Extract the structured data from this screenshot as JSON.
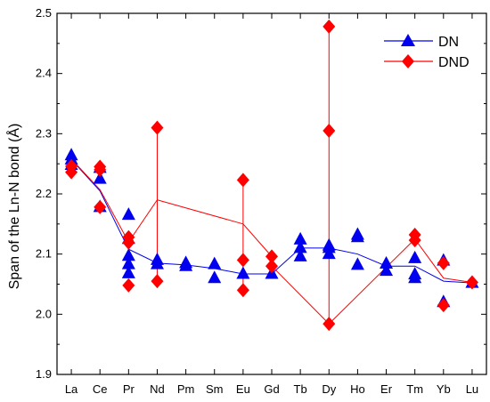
{
  "chart_data": {
    "type": "scatter",
    "title": "",
    "xlabel": "",
    "ylabel": "Span of the Ln-N bond (Å)",
    "categories": [
      "La",
      "Ce",
      "Pr",
      "Nd",
      "Pm",
      "Sm",
      "Eu",
      "Gd",
      "Tb",
      "Dy",
      "Ho",
      "Er",
      "Tm",
      "Yb",
      "Lu"
    ],
    "ylim": [
      1.9,
      2.5
    ],
    "yticks": [
      "1.9",
      "2.0",
      "2.1",
      "2.2",
      "2.3",
      "2.4",
      "2.5"
    ],
    "grid": false,
    "legend_position": "top-right",
    "series": [
      {
        "name": "DN",
        "marker": "triangle",
        "color": "#0000ee",
        "points": [
          [
            "La",
            2.264
          ],
          [
            "La",
            2.257
          ],
          [
            "La",
            2.248
          ],
          [
            "Ce",
            2.243
          ],
          [
            "Ce",
            2.225
          ],
          [
            "Ce",
            2.178
          ],
          [
            "Pr",
            2.165
          ],
          [
            "Pr",
            2.125
          ],
          [
            "Pr",
            2.097
          ],
          [
            "Pr",
            2.083
          ],
          [
            "Pr",
            2.068
          ],
          [
            "Nd",
            2.09
          ],
          [
            "Nd",
            2.083
          ],
          [
            "Pm",
            2.085
          ],
          [
            "Pm",
            2.08
          ],
          [
            "Sm",
            2.083
          ],
          [
            "Sm",
            2.06
          ],
          [
            "Eu",
            2.067
          ],
          [
            "Gd",
            2.067
          ],
          [
            "Tb",
            2.124
          ],
          [
            "Tb",
            2.11
          ],
          [
            "Tb",
            2.096
          ],
          [
            "Dy",
            2.114
          ],
          [
            "Dy",
            2.11
          ],
          [
            "Dy",
            2.1
          ],
          [
            "Ho",
            2.132
          ],
          [
            "Ho",
            2.128
          ],
          [
            "Ho",
            2.082
          ],
          [
            "Er",
            2.084
          ],
          [
            "Er",
            2.072
          ],
          [
            "Tm",
            2.093
          ],
          [
            "Tm",
            2.066
          ],
          [
            "Tm",
            2.06
          ],
          [
            "Yb",
            2.089
          ],
          [
            "Yb",
            2.02
          ],
          [
            "Lu",
            2.052
          ]
        ],
        "line": [
          [
            "La",
            2.257
          ],
          [
            "Ce",
            2.205
          ],
          [
            "Pr",
            2.108
          ],
          [
            "Nd",
            2.085
          ],
          [
            "Pm",
            2.082
          ],
          [
            "Sm",
            2.076
          ],
          [
            "Eu",
            2.067
          ],
          [
            "Gd",
            2.067
          ],
          [
            "Tb",
            2.11
          ],
          [
            "Dy",
            2.11
          ],
          [
            "Ho",
            2.1
          ],
          [
            "Er",
            2.08
          ],
          [
            "Tm",
            2.08
          ],
          [
            "Yb",
            2.055
          ],
          [
            "Lu",
            2.052
          ]
        ]
      },
      {
        "name": "DND",
        "marker": "diamond",
        "color": "#ff0000",
        "points": [
          [
            "La",
            2.246
          ],
          [
            "La",
            2.236
          ],
          [
            "Ce",
            2.245
          ],
          [
            "Ce",
            2.24
          ],
          [
            "Ce",
            2.178
          ],
          [
            "Pr",
            2.128
          ],
          [
            "Pr",
            2.119
          ],
          [
            "Pr",
            2.048
          ],
          [
            "Nd",
            2.31
          ],
          [
            "Nd",
            2.055
          ],
          [
            "Eu",
            2.223
          ],
          [
            "Eu",
            2.09
          ],
          [
            "Eu",
            2.04
          ],
          [
            "Gd",
            2.096
          ],
          [
            "Gd",
            2.08
          ],
          [
            "Dy",
            2.478
          ],
          [
            "Dy",
            2.305
          ],
          [
            "Dy",
            1.984
          ],
          [
            "Tm",
            2.132
          ],
          [
            "Tm",
            2.123
          ],
          [
            "Yb",
            2.085
          ],
          [
            "Yb",
            2.015
          ],
          [
            "Lu",
            2.053
          ]
        ],
        "line": [
          [
            "La",
            2.258
          ],
          [
            "Ce",
            2.207
          ],
          [
            "Pr",
            2.12
          ],
          [
            "Nd",
            2.19
          ],
          [
            "Nd",
            2.055
          ],
          [
            "Nd",
            2.31
          ],
          [
            "Nd",
            2.19
          ],
          [
            "Eu",
            2.15
          ],
          [
            "Eu",
            2.04
          ],
          [
            "Eu",
            2.223
          ],
          [
            "Eu",
            2.15
          ],
          [
            "Gd",
            2.096
          ],
          [
            "Gd",
            2.08
          ],
          [
            "Dy",
            1.984
          ],
          [
            "Dy",
            2.478
          ],
          [
            "Dy",
            2.09
          ],
          [
            "Dy",
            1.984
          ],
          [
            "Tm",
            2.125
          ],
          [
            "Yb",
            2.06
          ],
          [
            "Lu",
            2.053
          ]
        ]
      }
    ]
  }
}
